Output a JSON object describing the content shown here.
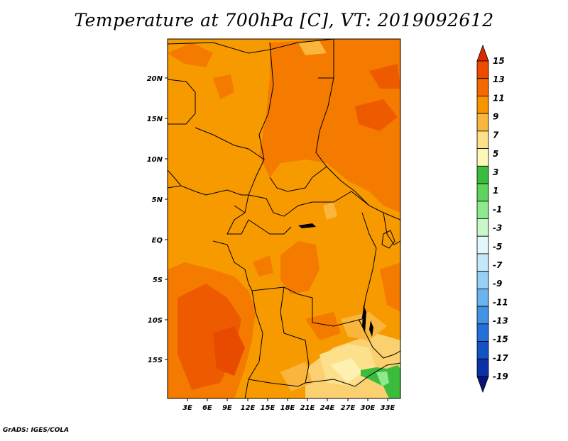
{
  "title": "Temperature at 700hPa [C], VT: 2019092612",
  "footer": "GrADS: IGES/COLA",
  "map": {
    "lat_labels": [
      "20N",
      "15N",
      "10N",
      "5N",
      "EQ",
      "5S",
      "10S",
      "15S"
    ],
    "lon_labels": [
      "3E",
      "6E",
      "9E",
      "12E",
      "15E",
      "18E",
      "21E",
      "24E",
      "27E",
      "30E",
      "33E"
    ]
  },
  "colorbar": {
    "labels": [
      "15",
      "13",
      "11",
      "9",
      "7",
      "5",
      "3",
      "1",
      "-1",
      "-3",
      "-5",
      "-7",
      "-9",
      "-11",
      "-13",
      "-15",
      "-17",
      "-19"
    ],
    "colors": [
      "#d92a00",
      "#ee4b00",
      "#f56a00",
      "#f79400",
      "#f9b53c",
      "#fde088",
      "#fdf8b8",
      "#3cbc3c",
      "#5ed45e",
      "#8ee88e",
      "#c8f7c8",
      "#e3f7fb",
      "#c4e8fa",
      "#97cff5",
      "#6ab3ef",
      "#4292e6",
      "#2470da",
      "#1452c4",
      "#0a32a6",
      "#0a1478"
    ]
  }
}
